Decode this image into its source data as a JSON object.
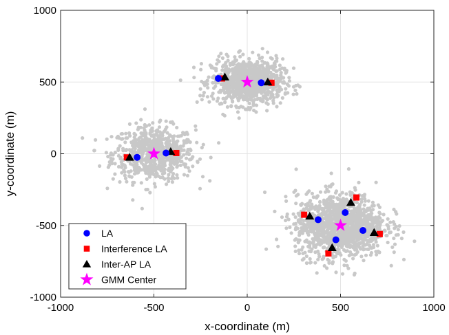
{
  "chart_data": {
    "type": "scatter",
    "xlabel": "x-coordinate (m)",
    "ylabel": "y-coordinate (m)",
    "xlim": [
      -1000,
      1000
    ],
    "ylim": [
      -1000,
      1000
    ],
    "xticks": [
      -1000,
      -500,
      0,
      500,
      1000
    ],
    "yticks": [
      -1000,
      -500,
      0,
      500,
      1000
    ],
    "xtick_labels": [
      "-1000",
      "-500",
      "0",
      "500",
      "1000"
    ],
    "ytick_labels": [
      "-1000",
      "-500",
      "0",
      "500",
      "1000"
    ],
    "grid": true,
    "legend_position": "bottom-left",
    "clusters": [
      {
        "center": [
          -500,
          0
        ],
        "std": [
          110,
          95
        ],
        "count": 700
      },
      {
        "center": [
          0,
          500
        ],
        "std": [
          95,
          80
        ],
        "count": 900
      },
      {
        "center": [
          500,
          -500
        ],
        "std": [
          120,
          110
        ],
        "count": 1300
      }
    ],
    "series": [
      {
        "name": "LA",
        "marker": "circle",
        "color": "#0000ff",
        "points": [
          [
            -590,
            -25
          ],
          [
            -435,
            5
          ],
          [
            -155,
            525
          ],
          [
            75,
            495
          ],
          [
            380,
            -460
          ],
          [
            525,
            -410
          ],
          [
            475,
            -600
          ],
          [
            620,
            -535
          ]
        ]
      },
      {
        "name": "Interference LA",
        "marker": "square",
        "color": "#ff0000",
        "points": [
          [
            -645,
            -25
          ],
          [
            -380,
            5
          ],
          [
            -135,
            525
          ],
          [
            130,
            495
          ],
          [
            305,
            -425
          ],
          [
            585,
            -305
          ],
          [
            435,
            -695
          ],
          [
            710,
            -560
          ]
        ]
      },
      {
        "name": "Inter-AP LA",
        "marker": "triangle",
        "color": "#000000",
        "points": [
          [
            -630,
            -25
          ],
          [
            -410,
            15
          ],
          [
            -120,
            535
          ],
          [
            110,
            500
          ],
          [
            335,
            -435
          ],
          [
            555,
            -340
          ],
          [
            455,
            -655
          ],
          [
            680,
            -550
          ]
        ]
      },
      {
        "name": "GMM Center",
        "marker": "star",
        "color": "#ff00ff",
        "points": [
          [
            -500,
            0
          ],
          [
            0,
            500
          ],
          [
            500,
            -500
          ]
        ]
      }
    ]
  }
}
